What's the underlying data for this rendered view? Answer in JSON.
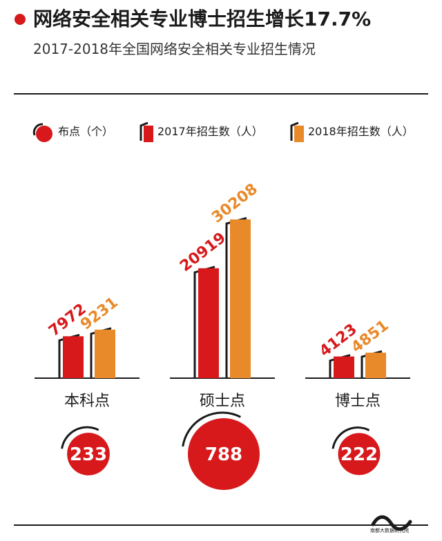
{
  "header": {
    "title": "网络安全相关专业博士招生增长17.7%",
    "subtitle": "2017-2018年全国网络安全相关专业招生情况"
  },
  "legend": {
    "points": "布点（个）",
    "y2017": "2017年招生数（人）",
    "y2018": "2018年招生数（人）"
  },
  "colors": {
    "red": "#d7191c",
    "orange": "#e8892a",
    "dark": "#1a1a1a"
  },
  "chart_data": {
    "type": "bar",
    "title": "2017-2018年全国网络安全相关专业招生情况",
    "categories": [
      "本科点",
      "硕士点",
      "博士点"
    ],
    "series": [
      {
        "name": "2017年招生数（人）",
        "values": [
          7972,
          20919,
          4123
        ]
      },
      {
        "name": "2018年招生数（人）",
        "values": [
          9231,
          30208,
          4851
        ]
      }
    ],
    "points": {
      "name": "布点（个）",
      "values": [
        233,
        788,
        222
      ]
    }
  },
  "footer": {
    "logo_text": "南都大数据研究院"
  }
}
